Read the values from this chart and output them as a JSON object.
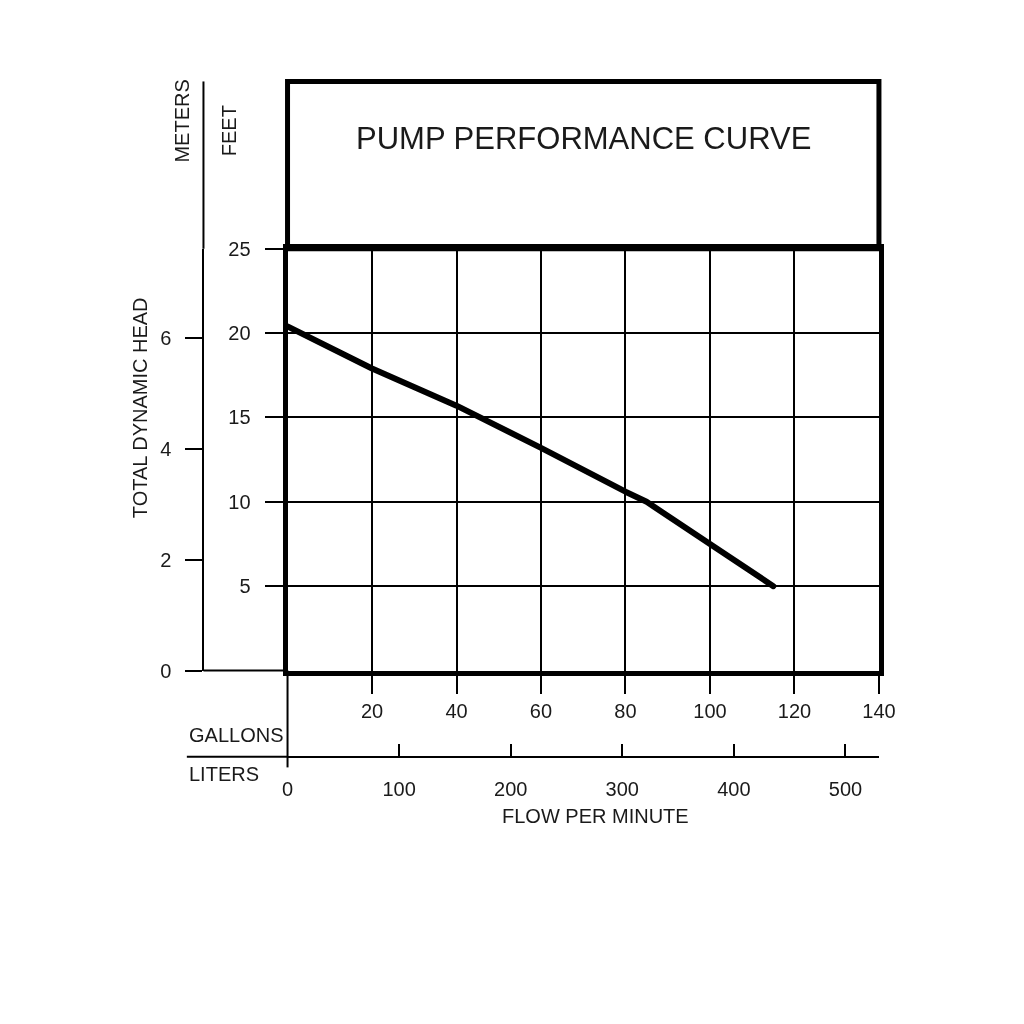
{
  "chart_data": {
    "type": "line",
    "title": "PUMP PERFORMANCE CURVE",
    "xlabel": "GALLONS",
    "x2label": "LITERS",
    "ylabel": "FEET",
    "y2label": "METERS",
    "annotations": [
      "TOTAL DYNAMIC HEAD",
      "FLOW PER MINUTE"
    ],
    "x": [
      0,
      20,
      40,
      60,
      80,
      85,
      100,
      115
    ],
    "series": [
      {
        "color": "#000000",
        "values": [
          20.4,
          17.9,
          15.7,
          13.2,
          10.6,
          10,
          7.5,
          5
        ]
      }
    ],
    "xlim": [
      0,
      140
    ],
    "xticks": [
      20,
      40,
      60,
      80,
      100,
      120,
      140
    ],
    "x2lim": [
      0,
      530
    ],
    "x2ticks": [
      0,
      100,
      200,
      300,
      400,
      500
    ],
    "ylim": [
      0,
      25
    ],
    "yticks": [
      5,
      10,
      15,
      20,
      25
    ],
    "y2lim": [
      0,
      7.62
    ],
    "y2ticks": [
      0,
      2,
      4,
      6
    ],
    "grid": true,
    "line_style": "solid"
  }
}
